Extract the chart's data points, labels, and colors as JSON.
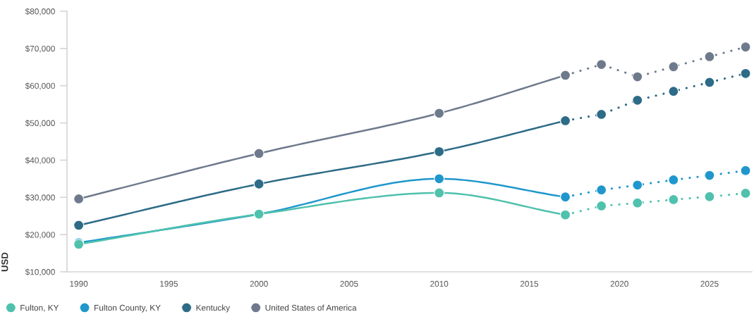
{
  "chart_data": {
    "type": "line",
    "ylabel": "USD",
    "xlim": [
      1989.35,
      2027.35
    ],
    "xticks": [
      1990,
      1995,
      2000,
      2005,
      2010,
      2015,
      2020,
      2025
    ],
    "ylim": [
      10000,
      80000
    ],
    "yticks": [
      {
        "value": 10000,
        "label": "$10,000"
      },
      {
        "value": 20000,
        "label": "$20,000"
      },
      {
        "value": 30000,
        "label": "$30,000"
      },
      {
        "value": 40000,
        "label": "$40,000"
      },
      {
        "value": 50000,
        "label": "$50,000"
      },
      {
        "value": 60000,
        "label": "$60,000"
      },
      {
        "value": 70000,
        "label": "$70,000"
      },
      {
        "value": 80000,
        "label": "$80,000"
      }
    ],
    "grid": false,
    "legend": "bottom",
    "marker": "circle",
    "series": [
      {
        "name": "Fulton, KY",
        "color": "#4fc1ad",
        "line_style": "solid",
        "x": [
          1990,
          2000,
          2010,
          2017
        ],
        "values": [
          17400,
          25500,
          31200,
          25300
        ]
      },
      {
        "name": "Fulton County, KY",
        "color": "#1f97cc",
        "line_style": "solid",
        "x": [
          1990,
          2000,
          2010,
          2017
        ],
        "values": [
          17800,
          25500,
          35000,
          30100
        ]
      },
      {
        "name": "Kentucky",
        "color": "#2d6b87",
        "line_style": "solid",
        "x": [
          1990,
          2000,
          2010,
          2017
        ],
        "values": [
          22500,
          33600,
          42300,
          50600
        ]
      },
      {
        "name": "United States of America",
        "color": "#6e7a8c",
        "line_style": "solid",
        "x": [
          1990,
          2000,
          2010,
          2017
        ],
        "values": [
          29600,
          41800,
          52600,
          62800
        ]
      },
      {
        "color": "#4fc1ad",
        "line_style": "dotted",
        "x": [
          2017,
          2019,
          2021,
          2023,
          2025,
          2027
        ],
        "values": [
          25300,
          27700,
          28500,
          29400,
          30200,
          31100
        ]
      },
      {
        "color": "#1f97cc",
        "line_style": "dotted",
        "x": [
          2017,
          2019,
          2021,
          2023,
          2025,
          2027
        ],
        "values": [
          30100,
          32000,
          33300,
          34700,
          35900,
          37200
        ]
      },
      {
        "color": "#2d6b87",
        "line_style": "dotted",
        "x": [
          2017,
          2019,
          2021,
          2023,
          2025,
          2027
        ],
        "values": [
          50600,
          52300,
          56100,
          58500,
          60900,
          63300
        ]
      },
      {
        "color": "#6e7a8c",
        "line_style": "dotted",
        "x": [
          2017,
          2019,
          2021,
          2023,
          2025,
          2027
        ],
        "values": [
          62800,
          65700,
          62400,
          65100,
          67800,
          70400
        ]
      }
    ]
  }
}
